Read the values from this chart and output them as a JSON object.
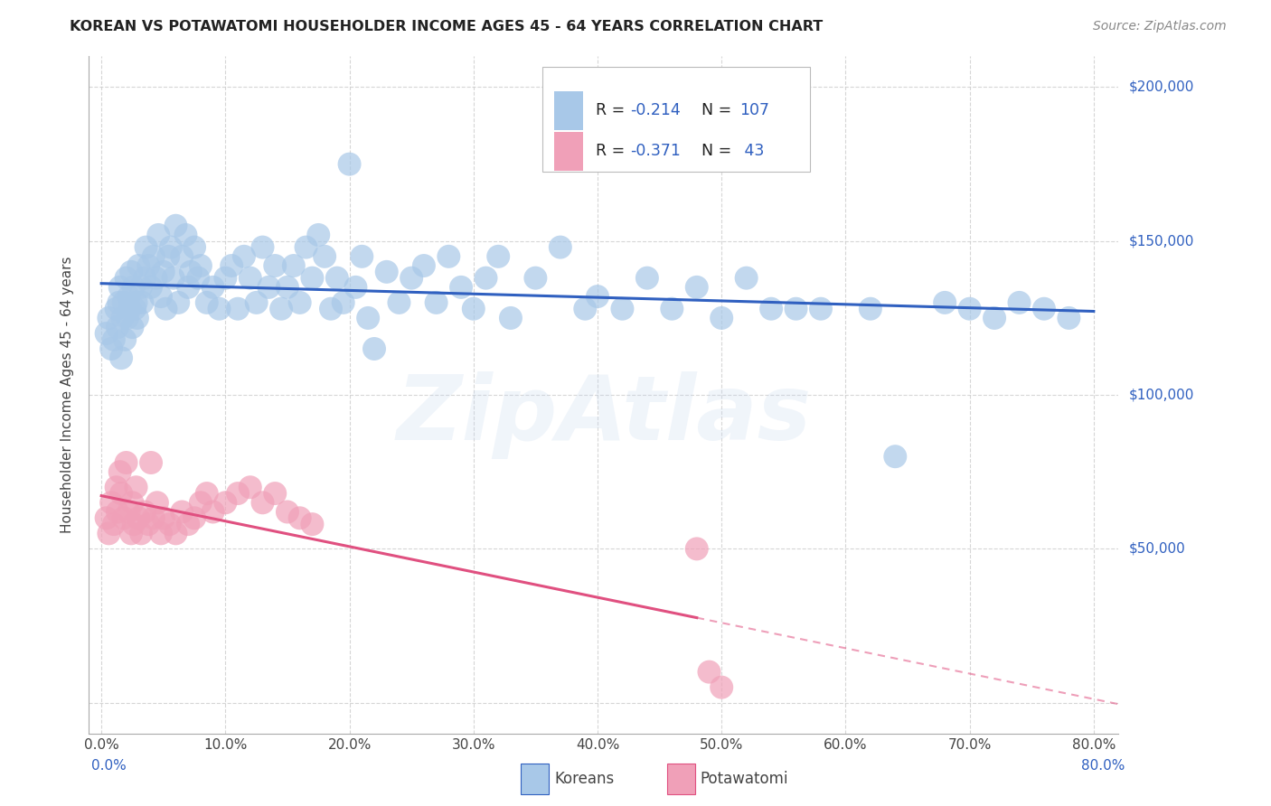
{
  "title": "KOREAN VS POTAWATOMI HOUSEHOLDER INCOME AGES 45 - 64 YEARS CORRELATION CHART",
  "source": "Source: ZipAtlas.com",
  "xlabel_ticks": [
    "0.0%",
    "10.0%",
    "20.0%",
    "30.0%",
    "40.0%",
    "50.0%",
    "60.0%",
    "70.0%",
    "80.0%"
  ],
  "ylabel_label": "Householder Income Ages 45 - 64 years",
  "xlim": [
    -0.01,
    0.82
  ],
  "ylim": [
    -10000,
    210000
  ],
  "ytick_values": [
    0,
    50000,
    100000,
    150000,
    200000
  ],
  "ytick_labels_right": [
    "$200,000",
    "$150,000",
    "$100,000",
    "$50,000"
  ],
  "ytick_values_right": [
    200000,
    150000,
    100000,
    50000
  ],
  "legend_R1": "-0.214",
  "legend_N1": "107",
  "legend_R2": "-0.371",
  "legend_N2": " 43",
  "korean_color": "#a8c8e8",
  "potawatomi_color": "#f0a0b8",
  "korean_line_color": "#3060c0",
  "potawatomi_line_color": "#e05080",
  "watermark": "ZipAtlas",
  "korean_scatter_x": [
    0.004,
    0.006,
    0.008,
    0.01,
    0.012,
    0.013,
    0.014,
    0.015,
    0.016,
    0.017,
    0.018,
    0.019,
    0.02,
    0.021,
    0.022,
    0.023,
    0.024,
    0.025,
    0.026,
    0.027,
    0.028,
    0.029,
    0.03,
    0.032,
    0.033,
    0.035,
    0.036,
    0.038,
    0.04,
    0.042,
    0.044,
    0.046,
    0.048,
    0.05,
    0.052,
    0.054,
    0.056,
    0.058,
    0.06,
    0.062,
    0.065,
    0.068,
    0.07,
    0.072,
    0.075,
    0.078,
    0.08,
    0.085,
    0.09,
    0.095,
    0.1,
    0.105,
    0.11,
    0.115,
    0.12,
    0.125,
    0.13,
    0.135,
    0.14,
    0.145,
    0.15,
    0.155,
    0.16,
    0.165,
    0.17,
    0.175,
    0.18,
    0.185,
    0.19,
    0.195,
    0.2,
    0.205,
    0.21,
    0.215,
    0.22,
    0.23,
    0.24,
    0.25,
    0.26,
    0.27,
    0.28,
    0.29,
    0.3,
    0.31,
    0.32,
    0.33,
    0.35,
    0.37,
    0.39,
    0.4,
    0.42,
    0.44,
    0.46,
    0.48,
    0.5,
    0.52,
    0.54,
    0.56,
    0.58,
    0.62,
    0.64,
    0.68,
    0.7,
    0.72,
    0.74,
    0.76,
    0.78
  ],
  "korean_scatter_y": [
    120000,
    125000,
    115000,
    118000,
    128000,
    122000,
    130000,
    135000,
    112000,
    125000,
    130000,
    118000,
    138000,
    125000,
    132000,
    128000,
    140000,
    122000,
    135000,
    128000,
    130000,
    125000,
    142000,
    135000,
    130000,
    138000,
    148000,
    142000,
    135000,
    145000,
    138000,
    152000,
    132000,
    140000,
    128000,
    145000,
    148000,
    138000,
    155000,
    130000,
    145000,
    152000,
    135000,
    140000,
    148000,
    138000,
    142000,
    130000,
    135000,
    128000,
    138000,
    142000,
    128000,
    145000,
    138000,
    130000,
    148000,
    135000,
    142000,
    128000,
    135000,
    142000,
    130000,
    148000,
    138000,
    152000,
    145000,
    128000,
    138000,
    130000,
    175000,
    135000,
    145000,
    125000,
    115000,
    140000,
    130000,
    138000,
    142000,
    130000,
    145000,
    135000,
    128000,
    138000,
    145000,
    125000,
    138000,
    148000,
    128000,
    132000,
    128000,
    138000,
    128000,
    135000,
    125000,
    138000,
    128000,
    128000,
    128000,
    128000,
    80000,
    130000,
    128000,
    125000,
    130000,
    128000,
    125000
  ],
  "potawatomi_scatter_x": [
    0.004,
    0.006,
    0.008,
    0.01,
    0.012,
    0.013,
    0.015,
    0.016,
    0.018,
    0.02,
    0.022,
    0.024,
    0.025,
    0.026,
    0.028,
    0.03,
    0.032,
    0.035,
    0.038,
    0.04,
    0.042,
    0.045,
    0.048,
    0.05,
    0.055,
    0.06,
    0.065,
    0.07,
    0.075,
    0.08,
    0.085,
    0.09,
    0.1,
    0.11,
    0.12,
    0.13,
    0.14,
    0.15,
    0.16,
    0.17,
    0.48,
    0.49,
    0.5
  ],
  "potawatomi_scatter_y": [
    60000,
    55000,
    65000,
    58000,
    70000,
    62000,
    75000,
    68000,
    60000,
    78000,
    62000,
    55000,
    65000,
    58000,
    70000,
    60000,
    55000,
    62000,
    58000,
    78000,
    60000,
    65000,
    55000,
    60000,
    58000,
    55000,
    62000,
    58000,
    60000,
    65000,
    68000,
    62000,
    65000,
    68000,
    70000,
    65000,
    68000,
    62000,
    60000,
    58000,
    50000,
    10000,
    5000
  ]
}
